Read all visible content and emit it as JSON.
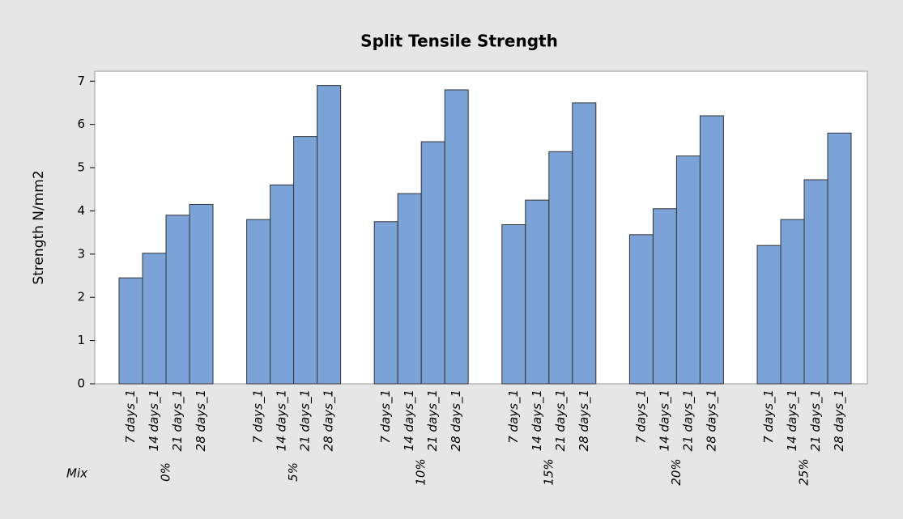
{
  "chart_data": {
    "type": "grouped-bar",
    "title": "Split Tensile Strength",
    "y_label": "Strength N/mm2",
    "group_label": "Mix",
    "categories": [
      "0%",
      "5%",
      "10%",
      "15%",
      "20%",
      "25%"
    ],
    "series": [
      {
        "name": "7 days_1",
        "color": "#7ba3d8",
        "values": [
          2.45,
          3.8,
          3.75,
          3.68,
          3.45,
          3.2
        ]
      },
      {
        "name": "14 days_1",
        "color": "#7ba3d8",
        "values": [
          3.02,
          4.6,
          4.4,
          4.25,
          4.05,
          3.8
        ]
      },
      {
        "name": "21 days_1",
        "color": "#7ba3d8",
        "values": [
          3.9,
          5.72,
          5.6,
          5.37,
          5.27,
          4.72
        ]
      },
      {
        "name": "28 days_1",
        "color": "#7ba3d8",
        "values": [
          4.15,
          6.9,
          6.8,
          6.5,
          6.2,
          5.8
        ]
      }
    ],
    "ylim": [
      0,
      7.23
    ],
    "yticks": [
      0,
      1,
      2,
      3,
      4,
      5,
      6,
      7
    ]
  }
}
